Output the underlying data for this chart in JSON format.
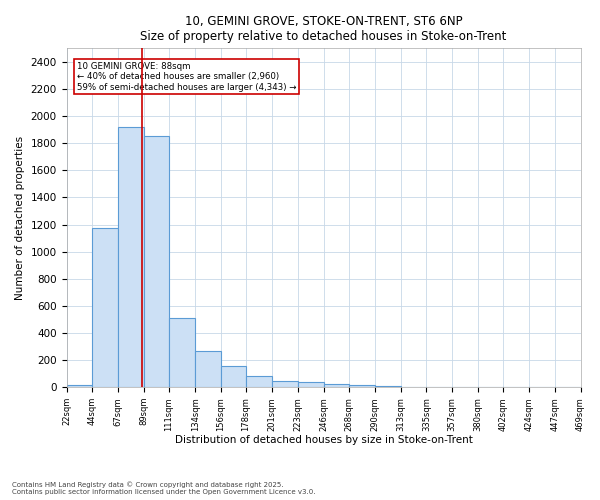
{
  "title_line1": "10, GEMINI GROVE, STOKE-ON-TRENT, ST6 6NP",
  "title_line2": "Size of property relative to detached houses in Stoke-on-Trent",
  "xlabel": "Distribution of detached houses by size in Stoke-on-Trent",
  "ylabel": "Number of detached properties",
  "annotation_line1": "10 GEMINI GROVE: 88sqm",
  "annotation_line2": "← 40% of detached houses are smaller (2,960)",
  "annotation_line3": "59% of semi-detached houses are larger (4,343) →",
  "property_size": 88,
  "bin_edges": [
    22,
    44,
    67,
    89,
    111,
    134,
    156,
    178,
    201,
    223,
    246,
    268,
    290,
    313,
    335,
    357,
    380,
    402,
    424,
    447,
    469
  ],
  "counts": [
    20,
    1175,
    1920,
    1850,
    510,
    270,
    155,
    85,
    45,
    35,
    25,
    15,
    8,
    5,
    3,
    2,
    2,
    1,
    1,
    1
  ],
  "bar_color": "#cce0f5",
  "bar_edge_color": "#5b9bd5",
  "red_line_color": "#cc0000",
  "annotation_box_color": "#ffffff",
  "annotation_box_edge": "#cc0000",
  "background_color": "#ffffff",
  "grid_color": "#c8d8e8",
  "ylim": [
    0,
    2500
  ],
  "yticks": [
    0,
    200,
    400,
    600,
    800,
    1000,
    1200,
    1400,
    1600,
    1800,
    2000,
    2200,
    2400
  ],
  "footnote_line1": "Contains HM Land Registry data © Crown copyright and database right 2025.",
  "footnote_line2": "Contains public sector information licensed under the Open Government Licence v3.0."
}
